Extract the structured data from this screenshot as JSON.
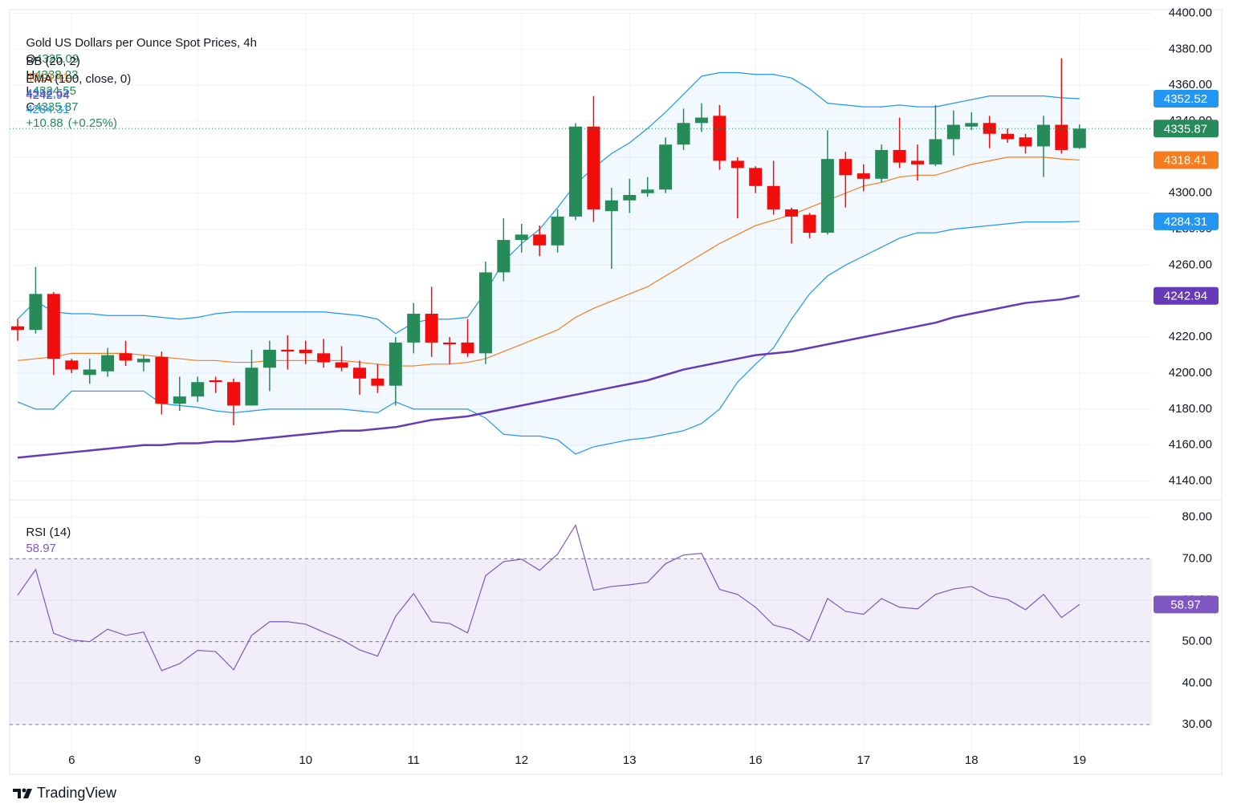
{
  "chart_data": {
    "type": "candlestick",
    "title": "Gold US Dollars per Ounce Spot Prices, 4h",
    "watermark": "TradingView",
    "ohlc_letters": [
      "O",
      "H",
      "L",
      "C"
    ],
    "change": {
      "value": 10.88,
      "label": "+10.88"
    },
    "change_pct": {
      "value": 0.25,
      "label": "(+0.25%)"
    },
    "up_color": "#268a59",
    "down_color": "#f20d0d",
    "categories": [
      null,
      null,
      null,
      "6",
      null,
      null,
      null,
      null,
      null,
      null,
      "9",
      null,
      null,
      null,
      null,
      null,
      "10",
      null,
      null,
      null,
      null,
      null,
      "11",
      null,
      null,
      null,
      null,
      null,
      "12",
      null,
      null,
      null,
      null,
      null,
      "13",
      null,
      null,
      null,
      null,
      null,
      null,
      "16",
      null,
      null,
      null,
      null,
      null,
      "17",
      null,
      null,
      null,
      null,
      null,
      "18",
      null,
      null,
      null,
      null,
      null,
      "19"
    ],
    "open": [
      4226,
      4224,
      4244,
      4207,
      4199,
      4201,
      4211,
      4206,
      4209,
      4183,
      4187,
      4196,
      4195,
      4182,
      4203,
      4213,
      4213,
      4211,
      4206,
      4203,
      4197,
      4193,
      4217,
      4233,
      4217,
      4217,
      4211,
      4256,
      4274,
      4277,
      4271,
      4287,
      4337,
      4290,
      4296,
      4300,
      4302,
      4327,
      4339,
      4343,
      4318,
      4314,
      4304,
      4291,
      4288,
      4278,
      4319,
      4311,
      4308,
      4324,
      4318,
      4316,
      4330,
      4337,
      4339,
      4333,
      4331,
      4326,
      4338,
      4325.09
    ],
    "high": [
      4230,
      4259,
      4245,
      4208,
      4208,
      4214,
      4218,
      4210,
      4212,
      4198,
      4198,
      4198,
      4197,
      4213,
      4218,
      4221,
      4218,
      4219,
      4215,
      4207,
      4205,
      4220,
      4239,
      4248,
      4220,
      4230,
      4262,
      4286,
      4283,
      4282,
      4291,
      4339,
      4354,
      4303,
      4308,
      4309,
      4331,
      4347,
      4350,
      4349,
      4320,
      4315,
      4318,
      4292,
      4289,
      4335,
      4323,
      4316,
      4327,
      4342,
      4327,
      4349,
      4346,
      4345,
      4343,
      4336,
      4333,
      4343,
      4375,
      4338.23
    ],
    "low": [
      4218,
      4222,
      4199,
      4200,
      4194,
      4198,
      4204,
      4201,
      4177,
      4179,
      4184,
      4189,
      4171,
      4182,
      4190,
      4202,
      4205,
      4203,
      4201,
      4188,
      4189,
      4182,
      4211,
      4209,
      4205,
      4209,
      4205,
      4251,
      4267,
      4265,
      4267,
      4285,
      4284,
      4258,
      4289,
      4298,
      4300,
      4324,
      4334,
      4313,
      4286,
      4300,
      4288,
      4272,
      4275,
      4277,
      4292,
      4301,
      4306,
      4314,
      4307,
      4315,
      4321,
      4335,
      4325,
      4328,
      4322,
      4309,
      4322,
      4324.55
    ],
    "close": [
      4224,
      4244,
      4208,
      4202,
      4202,
      4210,
      4207,
      4208,
      4183,
      4187,
      4195,
      4195,
      4182,
      4203,
      4213,
      4212,
      4211,
      4206,
      4203,
      4197,
      4193,
      4217,
      4233,
      4217,
      4216,
      4211,
      4256,
      4274,
      4277,
      4271,
      4287,
      4337,
      4291,
      4296,
      4299,
      4302,
      4327,
      4339,
      4342,
      4318,
      4314,
      4304,
      4291,
      4287,
      4278,
      4319,
      4310,
      4308,
      4324,
      4317,
      4316,
      4330,
      4338,
      4339,
      4333,
      4330,
      4326,
      4338,
      4324,
      4335.87
    ],
    "bb": {
      "name": "BB (20, 2)",
      "basis_color": "#f57c1f",
      "band_color": "#2196f3",
      "fill": "#2196f3",
      "upper": [
        4230,
        4240,
        4234,
        4233,
        4233,
        4232,
        4232,
        4232,
        4231,
        4230,
        4231,
        4233,
        4234,
        4234,
        4234,
        4234,
        4234,
        4234,
        4233,
        4232,
        4230,
        4222,
        4228,
        4230,
        4230,
        4231,
        4245,
        4262,
        4272,
        4280,
        4292,
        4305,
        4314,
        4322,
        4328,
        4336,
        4345,
        4355,
        4365,
        4367,
        4367,
        4366,
        4366,
        4364,
        4358,
        4350,
        4349,
        4348,
        4348,
        4349,
        4348,
        4348,
        4350,
        4352,
        4354,
        4354,
        4354,
        4354,
        4353,
        4352.52
      ],
      "basis": [
        4207,
        4208,
        4209,
        4211,
        4211,
        4211,
        4211,
        4210,
        4209,
        4208,
        4207,
        4207,
        4206,
        4206,
        4207,
        4207,
        4207,
        4207,
        4207,
        4206,
        4205,
        4204,
        4204,
        4205,
        4205,
        4206,
        4208,
        4212,
        4216,
        4220,
        4224,
        4231,
        4236,
        4240,
        4244,
        4248,
        4254,
        4260,
        4266,
        4272,
        4277,
        4282,
        4285,
        4288,
        4292,
        4296,
        4300,
        4304,
        4306,
        4309,
        4310,
        4310,
        4313,
        4316,
        4318,
        4320,
        4320,
        4320,
        4319,
        4318.41
      ],
      "lower": [
        4184,
        4180,
        4180,
        4190,
        4190,
        4190,
        4190,
        4190,
        4183,
        4182,
        4181,
        4179,
        4178,
        4179,
        4180,
        4180,
        4180,
        4180,
        4180,
        4179,
        4178,
        4184,
        4180,
        4180,
        4180,
        4180,
        4175,
        4166,
        4165,
        4165,
        4163,
        4155,
        4159,
        4161,
        4163,
        4164,
        4166,
        4168,
        4172,
        4180,
        4195,
        4205,
        4214,
        4230,
        4244,
        4254,
        4260,
        4265,
        4270,
        4275,
        4278,
        4278,
        4280,
        4281,
        4282,
        4283,
        4284,
        4284,
        4284,
        4284.31
      ]
    },
    "ema": {
      "name": "EMA (100, close, 0)",
      "color": "#673ab7",
      "values": [
        4153,
        4154,
        4155,
        4156,
        4157,
        4158,
        4159,
        4160,
        4160,
        4161,
        4161,
        4162,
        4162,
        4163,
        4164,
        4165,
        4166,
        4167,
        4168,
        4168,
        4169,
        4170,
        4172,
        4174,
        4175,
        4176,
        4178,
        4180,
        4182,
        4184,
        4186,
        4188,
        4190,
        4192,
        4194,
        4196,
        4199,
        4202,
        4204,
        4206,
        4208,
        4210,
        4211,
        4212,
        4214,
        4216,
        4218,
        4220,
        4222,
        4224,
        4226,
        4228,
        4231,
        4233,
        4235,
        4237,
        4239,
        4240,
        4241,
        4242.94
      ]
    },
    "ylim": [
      4130,
      4402
    ],
    "yticks": [
      {
        "value": 4140,
        "label": "4140.00"
      },
      {
        "value": 4160,
        "label": "4160.00"
      },
      {
        "value": 4180,
        "label": "4180.00"
      },
      {
        "value": 4200,
        "label": "4200.00"
      },
      {
        "value": 4220,
        "label": "4220.00"
      },
      {
        "value": 4240,
        "label": "4240.00"
      },
      {
        "value": 4260,
        "label": "4260.00"
      },
      {
        "value": 4280,
        "label": "4280.00"
      },
      {
        "value": 4300,
        "label": "4300.00"
      },
      {
        "value": 4320,
        "label": "4320.00"
      },
      {
        "value": 4340,
        "label": "4340.00"
      },
      {
        "value": 4360,
        "label": "4360.00"
      },
      {
        "value": 4380,
        "label": "4380.00"
      },
      {
        "value": 4400,
        "label": "4400.00"
      }
    ],
    "grid": true,
    "rsi": {
      "name": "RSI (14)",
      "color": "#7e57c2",
      "band": [
        30,
        70
      ],
      "levels": [
        70,
        50,
        30
      ],
      "values": [
        61.2,
        67.4,
        52,
        50.4,
        50,
        53,
        51.5,
        52.3,
        43,
        44.7,
        47.9,
        47.6,
        43.2,
        51.5,
        54.8,
        54.8,
        54.2,
        52.3,
        50.5,
        48,
        46.5,
        56.1,
        61.6,
        54.8,
        54.4,
        52.1,
        65.9,
        69.3,
        69.9,
        67.2,
        71.1,
        78.1,
        62.4,
        63.3,
        63.7,
        64.3,
        68.8,
        70.9,
        71.3,
        62.6,
        61.4,
        58.3,
        54,
        52.9,
        50.2,
        60.4,
        57.3,
        56.6,
        60.4,
        58.3,
        57.9,
        61.4,
        62.7,
        63.3,
        61,
        60.2,
        57.7,
        61.4,
        55.8,
        58.97
      ],
      "ylim": [
        18,
        84
      ],
      "yticks": [
        {
          "value": 30,
          "label": "30.00"
        },
        {
          "value": 40,
          "label": "40.00"
        },
        {
          "value": 50,
          "label": "50.00"
        },
        {
          "value": 60,
          "label": "60.00"
        },
        {
          "value": 70,
          "label": "70.00"
        },
        {
          "value": 80,
          "label": "80.00"
        }
      ]
    }
  }
}
